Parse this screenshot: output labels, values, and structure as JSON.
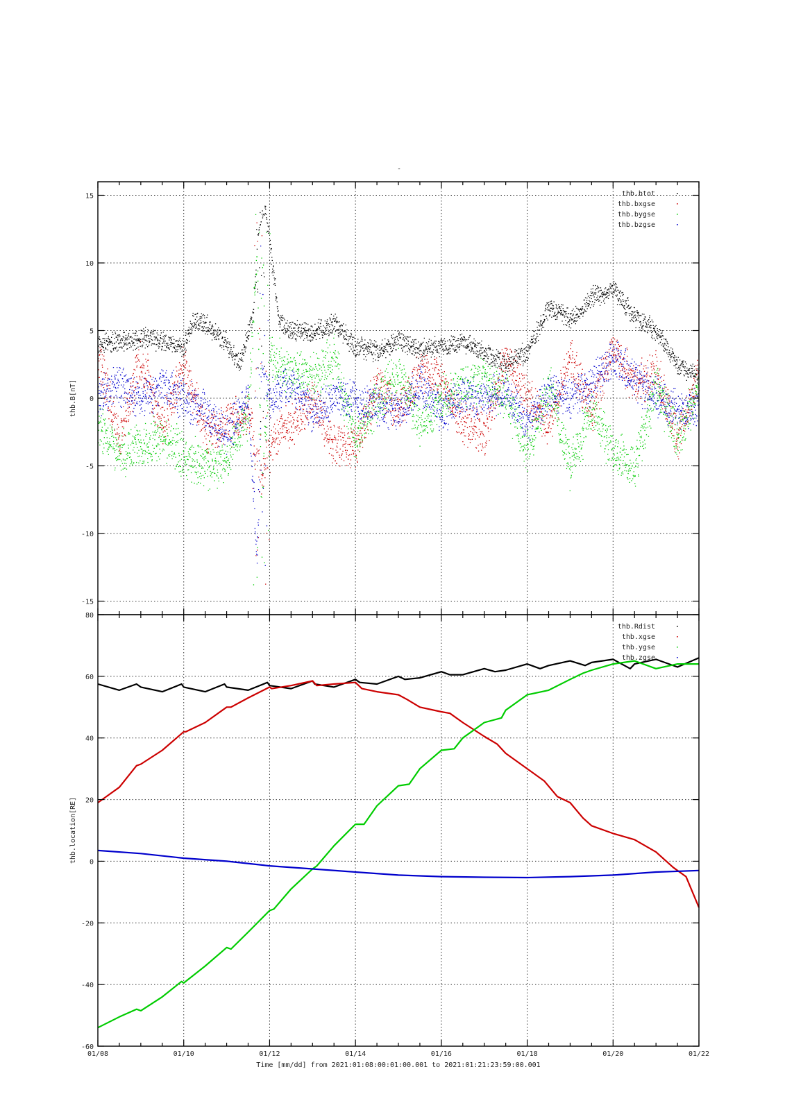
{
  "figure": {
    "title": "-",
    "xlabel": "Time [mm/dd]  from 2021:01:08:00:01:00.001  to  2021:01:21:23:59:00.001",
    "x_ticks": [
      "01/08",
      "01/10",
      "01/12",
      "01/14",
      "01/16",
      "01/18",
      "01/20",
      "01/22"
    ]
  },
  "chart_data": [
    {
      "type": "scatter",
      "title": "",
      "ylabel": "thb.B[nT]",
      "xlim": [
        "2021-01-08",
        "2021-01-22"
      ],
      "ylim": [
        -16,
        16
      ],
      "y_ticks": [
        -15,
        -10,
        -5,
        0,
        5,
        10,
        15
      ],
      "grid": true,
      "legend_position": "top-right",
      "x_days_note": "x values are days after 2021-01-08 00:00",
      "series": [
        {
          "name": "thb.btot",
          "color": "#000000",
          "x": [
            0,
            0.5,
            1,
            1.5,
            2,
            2.2,
            2.5,
            3,
            3.3,
            3.6,
            3.75,
            3.9,
            4.2,
            4.5,
            5,
            5.5,
            6,
            6.5,
            7,
            7.5,
            8,
            8.5,
            9,
            9.5,
            10,
            10.5,
            11,
            11.5,
            12,
            12.5,
            13,
            13.5,
            14
          ],
          "y": [
            4,
            4.2,
            4.5,
            4.3,
            3.8,
            5.8,
            5.5,
            4,
            2.5,
            6,
            13,
            14,
            6,
            5,
            4.8,
            5.5,
            3.8,
            3.5,
            4.3,
            3.6,
            3.8,
            4.2,
            3.3,
            2.6,
            3.5,
            6.8,
            5.8,
            7.5,
            8.2,
            6,
            5,
            2.5,
            1.5
          ]
        },
        {
          "name": "thb.bxgse",
          "color": "#cc0000",
          "x": [
            0,
            0.5,
            1,
            1.5,
            2,
            2.5,
            3,
            3.5,
            3.8,
            4,
            4.5,
            5,
            5.5,
            6,
            6.5,
            7,
            7.5,
            8,
            8.5,
            9,
            9.5,
            10,
            10.5,
            11,
            11.5,
            12,
            12.5,
            13,
            13.5,
            14
          ],
          "y": [
            3,
            -3,
            3,
            -2,
            2.5,
            -2.5,
            -2,
            -1,
            -6,
            -3,
            -2,
            0,
            -3.5,
            -3.5,
            1,
            -1,
            2,
            1.5,
            -2,
            -2.5,
            3,
            0,
            -2,
            3,
            -1,
            4,
            1,
            2,
            -3,
            2
          ]
        },
        {
          "name": "thb.bygse",
          "color": "#00cc00",
          "x": [
            0,
            0.5,
            1,
            1.5,
            2,
            2.5,
            3,
            3.5,
            3.7,
            3.8,
            4,
            4.5,
            5,
            5.5,
            6,
            6.5,
            7,
            7.5,
            8,
            8.5,
            9,
            9.5,
            10,
            10.5,
            11,
            11.5,
            12,
            12.5,
            13,
            13.5,
            14
          ],
          "y": [
            -2,
            -4,
            -3.5,
            -3,
            -4,
            -5,
            -4.5,
            -1,
            11,
            -7,
            3,
            2,
            1.5,
            3,
            -3,
            0,
            2,
            -2,
            0,
            1,
            1.5,
            0,
            -4,
            1,
            -5,
            -1,
            -4,
            -5,
            1,
            -3,
            1
          ]
        },
        {
          "name": "thb.bzgse",
          "color": "#0000cc",
          "x": [
            0,
            0.5,
            1,
            1.5,
            2,
            2.5,
            3,
            3.5,
            3.7,
            3.8,
            4,
            4.5,
            5,
            5.5,
            6,
            6.5,
            7,
            7.5,
            8,
            8.5,
            9,
            9.5,
            10,
            10.5,
            11,
            11.5,
            12,
            12.5,
            13,
            13.5,
            14
          ],
          "y": [
            0,
            1,
            0,
            1,
            0,
            -1,
            -2.5,
            0,
            -12,
            2,
            0,
            1,
            -1,
            0,
            0,
            -0.5,
            -1,
            1,
            -1,
            0,
            0,
            0.5,
            -2,
            0.5,
            0,
            1,
            3,
            1.5,
            0,
            -1,
            -0.5
          ]
        }
      ]
    },
    {
      "type": "line",
      "title": "",
      "ylabel": "thb.location[RE]",
      "xlim": [
        "2021-01-08",
        "2021-01-22"
      ],
      "ylim": [
        -60,
        80
      ],
      "y_ticks": [
        -60,
        -40,
        -20,
        0,
        20,
        40,
        60,
        80
      ],
      "grid": true,
      "legend_position": "top-right",
      "series": [
        {
          "name": "thb.Rdist",
          "color": "#000000",
          "x": [
            0,
            0.5,
            0.9,
            1.0,
            1.5,
            1.95,
            2.0,
            2.5,
            2.95,
            3.0,
            3.5,
            3.95,
            4.0,
            4.5,
            5.0,
            5.05,
            5.5,
            6.0,
            6.1,
            6.5,
            7.0,
            7.15,
            7.5,
            8.0,
            8.2,
            8.5,
            9.0,
            9.25,
            9.5,
            10.0,
            10.3,
            10.5,
            11.0,
            11.35,
            11.5,
            12.0,
            12.4,
            12.5,
            13.0,
            13.5,
            14.0
          ],
          "y": [
            57.5,
            55.5,
            57.5,
            56.5,
            55,
            57.5,
            56.5,
            55,
            57.5,
            56.5,
            55.5,
            58,
            57,
            56,
            58.5,
            57.5,
            56.5,
            59,
            58,
            57.5,
            60,
            59,
            59.5,
            61.5,
            60.5,
            60.5,
            62.5,
            61.5,
            62,
            64,
            62.5,
            63.5,
            65,
            63.5,
            64.5,
            65.5,
            62.5,
            64,
            65.5,
            63,
            66
          ]
        },
        {
          "name": "thb.xgse",
          "color": "#cc0000",
          "x": [
            0,
            0.5,
            0.9,
            1.0,
            1.5,
            2.0,
            2.05,
            2.5,
            3.0,
            3.1,
            3.5,
            4.0,
            4.05,
            4.5,
            5.0,
            5.1,
            5.5,
            6.0,
            6.15,
            6.5,
            7.0,
            7.2,
            7.5,
            8.0,
            8.2,
            8.5,
            9.0,
            9.3,
            9.5,
            10.0,
            10.4,
            10.7,
            11.0,
            11.3,
            11.5,
            12.0,
            12.5,
            13.0,
            13.4,
            13.7,
            14.0
          ],
          "y": [
            19,
            24,
            31,
            31.5,
            36,
            42,
            42,
            45,
            50,
            50,
            53,
            56.5,
            56,
            57,
            58.5,
            57,
            57.5,
            58,
            56,
            55,
            54,
            52.5,
            50,
            48.5,
            48,
            45,
            40.5,
            38,
            35,
            30,
            26,
            21,
            19,
            14,
            11.5,
            9,
            7,
            3,
            -2,
            -5,
            -15
          ]
        },
        {
          "name": "thb.ygse",
          "color": "#00cc00",
          "x": [
            0,
            0.5,
            0.9,
            1.0,
            1.5,
            1.95,
            2.0,
            2.5,
            3.0,
            3.1,
            3.5,
            4.0,
            4.1,
            4.5,
            5.0,
            5.1,
            5.5,
            6.0,
            6.2,
            6.5,
            7.0,
            7.25,
            7.5,
            8.0,
            8.3,
            8.5,
            9.0,
            9.4,
            9.5,
            10.0,
            10.5,
            11.0,
            11.3,
            11.5,
            12.0,
            12.5,
            13.0,
            13.5,
            14.0
          ],
          "y": [
            -54,
            -50.5,
            -48,
            -48.5,
            -44,
            -39,
            -39.5,
            -34,
            -28,
            -28.5,
            -23,
            -16,
            -15.5,
            -9,
            -2.5,
            -1.5,
            5,
            12,
            12,
            18,
            24.5,
            25,
            30,
            36,
            36.5,
            40,
            45,
            46.5,
            49,
            54,
            55.5,
            59,
            61,
            62,
            64,
            65,
            62.5,
            64,
            64
          ]
        },
        {
          "name": "thb.zgse",
          "color": "#0000cc",
          "x": [
            0,
            1,
            2,
            3,
            4,
            5,
            6,
            7,
            8,
            9,
            10,
            11,
            12,
            13,
            14
          ],
          "y": [
            3.5,
            2.5,
            1,
            0,
            -1.5,
            -2.5,
            -3.5,
            -4.5,
            -5,
            -5.2,
            -5.3,
            -5,
            -4.5,
            -3.5,
            -3
          ]
        }
      ]
    }
  ]
}
